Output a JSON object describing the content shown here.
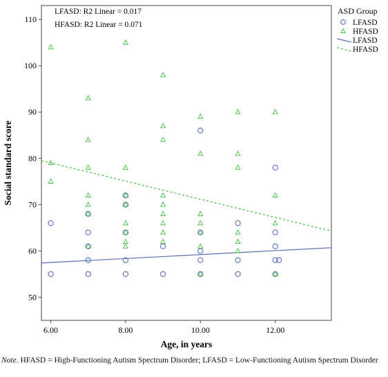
{
  "chart_data": {
    "type": "scatter",
    "xlabel": "Age, in years",
    "ylabel": "Social standard score",
    "xlim": [
      5.75,
      13.5
    ],
    "ylim": [
      45,
      113
    ],
    "x_ticks": [
      6,
      8,
      10,
      12
    ],
    "x_tick_labels": [
      "6.00",
      "8.00",
      "10.00",
      "12.00"
    ],
    "y_ticks": [
      50,
      60,
      70,
      80,
      90,
      100,
      110
    ],
    "y_tick_labels": [
      "50",
      "60",
      "70",
      "80",
      "90",
      "100",
      "110"
    ],
    "annotations": [
      "LFASD: R2 Linear = 0.017",
      "HFASD: R2 Linear = 0.071"
    ],
    "legend": {
      "title": "ASD Group",
      "placement": "top-right",
      "entries": [
        {
          "label": "LFASD",
          "symbol": "circle"
        },
        {
          "label": "HFASD",
          "symbol": "triangle"
        },
        {
          "label": "LFASD",
          "symbol": "solid-line"
        },
        {
          "label": "HFASD",
          "symbol": "dashed-line"
        }
      ]
    },
    "colors": {
      "LFASD": "#5b6fb5",
      "HFASD": "#3fbf3f"
    },
    "series": [
      {
        "name": "LFASD",
        "marker": "circle",
        "points": [
          [
            6,
            66
          ],
          [
            6,
            55
          ],
          [
            7,
            68
          ],
          [
            7,
            64
          ],
          [
            7,
            61
          ],
          [
            7,
            58
          ],
          [
            7,
            55
          ],
          [
            8,
            72
          ],
          [
            8,
            70
          ],
          [
            8,
            64
          ],
          [
            8,
            58
          ],
          [
            8,
            55
          ],
          [
            9,
            61
          ],
          [
            9,
            55
          ],
          [
            10,
            86
          ],
          [
            10,
            64
          ],
          [
            10,
            60
          ],
          [
            10,
            58
          ],
          [
            10,
            55
          ],
          [
            11,
            66
          ],
          [
            11,
            58
          ],
          [
            11,
            55
          ],
          [
            12,
            78
          ],
          [
            12,
            64
          ],
          [
            12,
            61
          ],
          [
            12,
            58
          ],
          [
            12.1,
            58
          ],
          [
            12,
            55
          ]
        ],
        "fit_line": {
          "x": [
            5.75,
            13.5
          ],
          "y": [
            57.4,
            60.7
          ]
        }
      },
      {
        "name": "HFASD",
        "marker": "triangle",
        "points": [
          [
            6,
            104
          ],
          [
            6,
            79
          ],
          [
            6,
            75
          ],
          [
            7,
            93
          ],
          [
            7,
            84
          ],
          [
            7,
            78
          ],
          [
            7,
            72
          ],
          [
            7,
            70
          ],
          [
            7,
            68
          ],
          [
            7,
            61
          ],
          [
            8,
            105
          ],
          [
            8,
            78
          ],
          [
            8,
            72
          ],
          [
            8,
            70
          ],
          [
            8,
            66
          ],
          [
            8,
            64
          ],
          [
            8,
            62
          ],
          [
            8,
            61
          ],
          [
            9,
            98
          ],
          [
            9,
            87
          ],
          [
            9,
            84
          ],
          [
            9,
            72
          ],
          [
            9,
            70
          ],
          [
            9,
            68
          ],
          [
            9,
            66
          ],
          [
            9,
            64
          ],
          [
            9,
            62
          ],
          [
            10,
            89
          ],
          [
            10,
            81
          ],
          [
            10,
            68
          ],
          [
            10,
            66
          ],
          [
            10,
            64
          ],
          [
            10,
            61
          ],
          [
            10,
            55
          ],
          [
            11,
            90
          ],
          [
            11,
            81
          ],
          [
            11,
            78
          ],
          [
            11,
            64
          ],
          [
            11,
            62
          ],
          [
            11,
            60
          ],
          [
            12,
            90
          ],
          [
            12,
            72
          ],
          [
            12,
            66
          ],
          [
            12,
            55
          ]
        ],
        "fit_line": {
          "x": [
            5.75,
            13.5
          ],
          "y": [
            79.5,
            64.3
          ]
        }
      }
    ]
  },
  "note": {
    "lead": "Note",
    "text": ".  HFASD = High-Functioning Autism Spectrum Disorder; LFASD = Low-Functioning Autism Spectrum Disorder"
  }
}
